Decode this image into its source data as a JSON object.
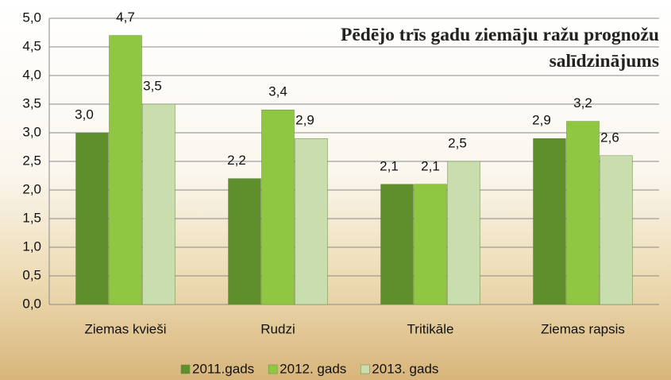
{
  "chart_data": {
    "type": "bar",
    "title": "Pēdējo trīs gadu ziemāju ražu prognožu salīdzinājums",
    "categories": [
      "Ziemas kvieši",
      "Rudzi",
      "Tritikāle",
      "Ziemas rapsis"
    ],
    "series": [
      {
        "name": "2011.gads",
        "color": "#5f8f2c",
        "values": [
          3.0,
          2.2,
          2.1,
          2.9
        ],
        "value_labels": [
          "3,0",
          "2,2",
          "2,1",
          "2,9"
        ]
      },
      {
        "name": "2012. gads",
        "color": "#8fc742",
        "values": [
          4.7,
          3.4,
          2.1,
          3.2
        ],
        "value_labels": [
          "4,7",
          "3,4",
          "2,1",
          "3,2"
        ]
      },
      {
        "name": "2013. gads",
        "color": "#c9ddae",
        "values": [
          3.5,
          2.9,
          2.5,
          2.6
        ],
        "value_labels": [
          "3,5",
          "2,9",
          "2,5",
          "2,6"
        ]
      }
    ],
    "ylim": [
      0,
      5
    ],
    "yticks": [
      {
        "value": 0,
        "label": "0,0"
      },
      {
        "value": 0.5,
        "label": "0,5"
      },
      {
        "value": 1,
        "label": "1,0"
      },
      {
        "value": 1.5,
        "label": "1,5"
      },
      {
        "value": 2,
        "label": "2,0"
      },
      {
        "value": 2.5,
        "label": "2,5"
      },
      {
        "value": 3,
        "label": "3,0"
      },
      {
        "value": 3.5,
        "label": "3,5"
      },
      {
        "value": 4,
        "label": "4,0"
      },
      {
        "value": 4.5,
        "label": "4,5"
      },
      {
        "value": 5,
        "label": "5,0"
      }
    ],
    "grid": true,
    "legend": "bottom"
  }
}
